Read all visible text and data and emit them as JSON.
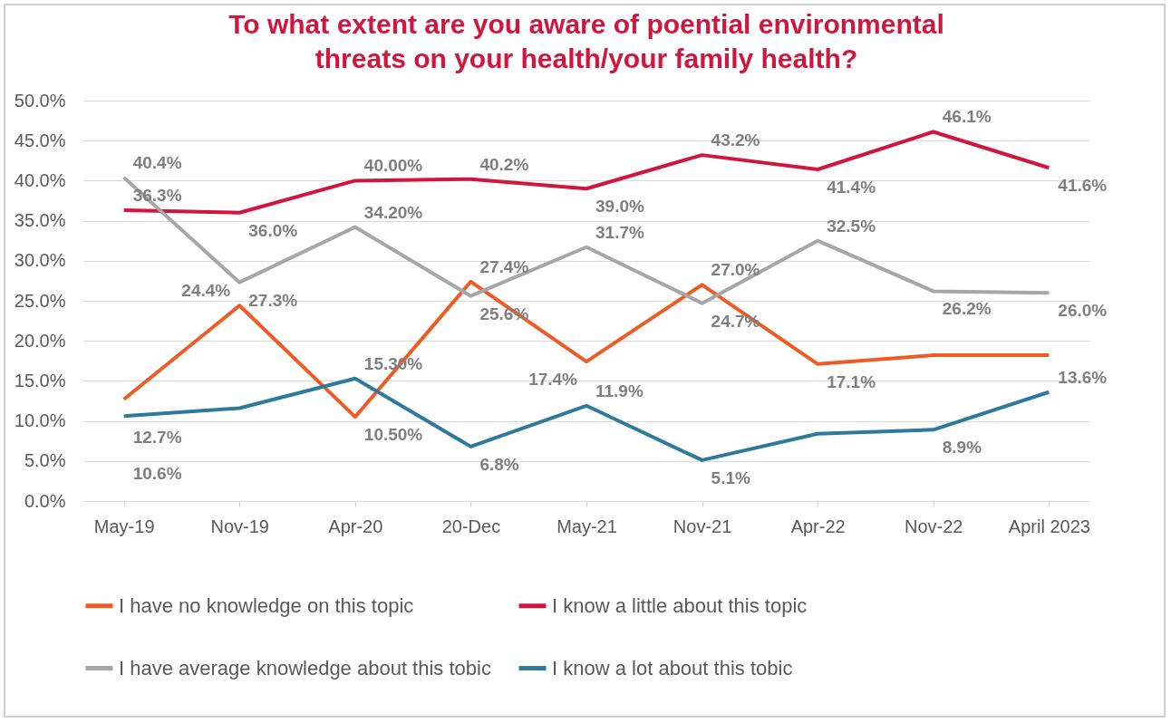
{
  "chart_data": {
    "type": "line",
    "title": "To what extent are you aware of poential environmental threats on your health/your family health?",
    "categories": [
      "May-19",
      "Nov-19",
      "Apr-20",
      "20-Dec",
      "May-21",
      "Nov-21",
      "Apr-22",
      "Nov-22",
      "April 2023"
    ],
    "series": [
      {
        "name": "I have no knowledge on this topic",
        "color": "#f05a23",
        "values": [
          12.7,
          24.4,
          10.5,
          27.4,
          17.4,
          27.0,
          17.1,
          18.2,
          18.2
        ],
        "value_labels": [
          "12.7%",
          "24.4%",
          "10.50%",
          "27.4%",
          "17.4%",
          "27.0%",
          "17.1%",
          null,
          null
        ]
      },
      {
        "name": "I know a little about this topic",
        "color": "#d0163f",
        "values": [
          36.3,
          36.0,
          40.0,
          40.2,
          39.0,
          43.2,
          41.4,
          46.1,
          41.6
        ],
        "value_labels": [
          "36.3%",
          "36.0%",
          "40.00%",
          "40.2%",
          "39.0%",
          "43.2%",
          "41.4%",
          "46.1%",
          "41.6%"
        ]
      },
      {
        "name": "I have average knowledge about this tobic",
        "color": "#a6a6a6",
        "values": [
          40.4,
          27.3,
          34.2,
          25.6,
          31.7,
          24.7,
          32.5,
          26.2,
          26.0
        ],
        "value_labels": [
          "40.4%",
          "27.3%",
          "34.20%",
          "25.6%",
          "31.7%",
          "24.7%",
          "32.5%",
          "26.2%",
          "26.0%"
        ]
      },
      {
        "name": "I know a lot about this tobic",
        "color": "#2e7a9c",
        "values": [
          10.6,
          11.6,
          15.3,
          6.8,
          11.9,
          5.1,
          8.4,
          8.9,
          13.6
        ],
        "value_labels": [
          "10.6%",
          null,
          "15.30%",
          "6.8%",
          "11.9%",
          "5.1%",
          null,
          "8.9%",
          "13.6%"
        ]
      }
    ],
    "ylim": [
      0,
      50
    ],
    "yticks": [
      {
        "value": 0,
        "label": "0.0%"
      },
      {
        "value": 5,
        "label": "5.0%"
      },
      {
        "value": 10,
        "label": "10.0%"
      },
      {
        "value": 15,
        "label": "15.0%"
      },
      {
        "value": 20,
        "label": "20.0%"
      },
      {
        "value": 25,
        "label": "25.0%"
      },
      {
        "value": 30,
        "label": "30.0%"
      },
      {
        "value": 35,
        "label": "35.0%"
      },
      {
        "value": 40,
        "label": "40.0%"
      },
      {
        "value": 45,
        "label": "45.0%"
      },
      {
        "value": 50,
        "label": "50.0%"
      }
    ],
    "grid": "y",
    "legend": "bottom",
    "marker": "none",
    "line_style": "solid"
  }
}
